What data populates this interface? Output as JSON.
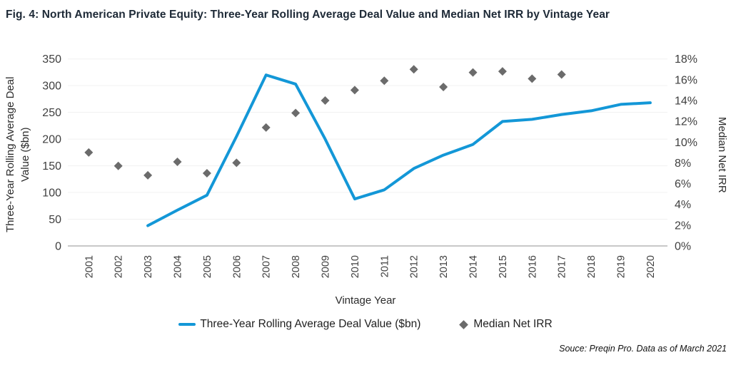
{
  "title": "Fig. 4: North American Private Equity: Three-Year Rolling Average Deal Value and Median Net IRR by Vintage Year",
  "source": "Souce: Preqin Pro. Data as of March 2021",
  "colors": {
    "line_blue": "#1397d7",
    "diamond_gray": "#6b6b6b",
    "gridline": "#f0f0f0",
    "axis_line": "#c8c8c8",
    "tick_text": "#3f3f3f",
    "title_text": "#1d2936"
  },
  "chart_data": {
    "type": "line",
    "subtype": "line-and-scatter-dual-axis",
    "x_categories": [
      "2001",
      "2002",
      "2003",
      "2004",
      "2005",
      "2006",
      "2007",
      "2008",
      "2009",
      "2010",
      "2011",
      "2012",
      "2013",
      "2014",
      "2015",
      "2016",
      "2017",
      "2018",
      "2019",
      "2020"
    ],
    "xlabel": "Vintage Year",
    "grid": "horizontal",
    "legend_position": "bottom",
    "left_axis": {
      "label": "Three-Year Rolling Average Deal Value ($bn)",
      "label_lines": [
        "Three-Year Rolling Average Deal",
        "Value ($bn)"
      ],
      "min": 0,
      "max": 350,
      "tick_step": 50,
      "ticks": [
        0,
        50,
        100,
        150,
        200,
        250,
        300,
        350
      ]
    },
    "right_axis": {
      "label": "Median Net IRR",
      "min": 0,
      "max": 18,
      "tick_step": 2,
      "ticks": [
        "0%",
        "2%",
        "4%",
        "6%",
        "8%",
        "10%",
        "12%",
        "14%",
        "16%",
        "18%"
      ]
    },
    "series": [
      {
        "name": "Three-Year Rolling Average Deal Value ($bn)",
        "type": "line",
        "axis": "left",
        "color": "#1397d7",
        "marker": "none",
        "points": [
          {
            "year": "2003",
            "value": 38
          },
          {
            "year": "2004",
            "value": 67
          },
          {
            "year": "2005",
            "value": 95
          },
          {
            "year": "2006",
            "value": 205
          },
          {
            "year": "2007",
            "value": 320
          },
          {
            "year": "2008",
            "value": 303
          },
          {
            "year": "2009",
            "value": 200
          },
          {
            "year": "2010",
            "value": 88
          },
          {
            "year": "2011",
            "value": 105
          },
          {
            "year": "2012",
            "value": 145
          },
          {
            "year": "2013",
            "value": 170
          },
          {
            "year": "2014",
            "value": 190
          },
          {
            "year": "2015",
            "value": 233
          },
          {
            "year": "2016",
            "value": 237
          },
          {
            "year": "2017",
            "value": 246
          },
          {
            "year": "2018",
            "value": 253
          },
          {
            "year": "2019",
            "value": 265
          },
          {
            "year": "2020",
            "value": 268
          }
        ]
      },
      {
        "name": "Median Net IRR",
        "type": "scatter",
        "axis": "right",
        "color": "#6b6b6b",
        "marker": "diamond",
        "points": [
          {
            "year": "2001",
            "value": 9.0
          },
          {
            "year": "2002",
            "value": 7.7
          },
          {
            "year": "2003",
            "value": 6.8
          },
          {
            "year": "2004",
            "value": 8.1
          },
          {
            "year": "2005",
            "value": 7.0
          },
          {
            "year": "2006",
            "value": 8.0
          },
          {
            "year": "2007",
            "value": 11.4
          },
          {
            "year": "2008",
            "value": 12.8
          },
          {
            "year": "2009",
            "value": 14.0
          },
          {
            "year": "2010",
            "value": 15.0
          },
          {
            "year": "2011",
            "value": 15.9
          },
          {
            "year": "2012",
            "value": 17.0
          },
          {
            "year": "2013",
            "value": 15.3
          },
          {
            "year": "2014",
            "value": 16.7
          },
          {
            "year": "2015",
            "value": 16.8
          },
          {
            "year": "2016",
            "value": 16.1
          },
          {
            "year": "2017",
            "value": 16.5
          }
        ]
      }
    ]
  }
}
